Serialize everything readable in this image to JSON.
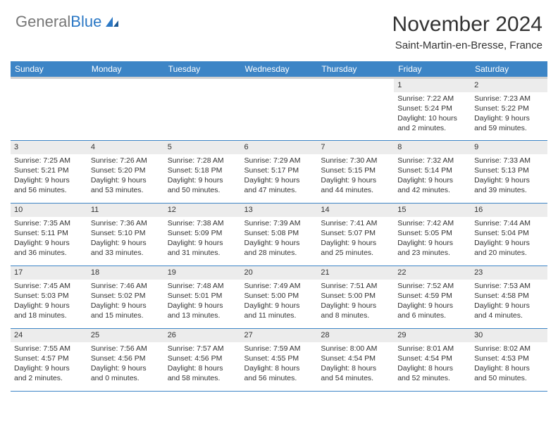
{
  "logo": {
    "text1": "General",
    "text2": "Blue"
  },
  "title": "November 2024",
  "location": "Saint-Martin-en-Bresse, France",
  "colors": {
    "header_bg": "#3d85c6",
    "header_fg": "#ffffff",
    "daynum_bg": "#ececec",
    "row_border": "#3d85c6",
    "logo_blue": "#2b78c5"
  },
  "weekdays": [
    "Sunday",
    "Monday",
    "Tuesday",
    "Wednesday",
    "Thursday",
    "Friday",
    "Saturday"
  ],
  "weeks": [
    [
      {
        "n": "",
        "sr": "",
        "ss": "",
        "dl": "",
        "empty": true
      },
      {
        "n": "",
        "sr": "",
        "ss": "",
        "dl": "",
        "empty": true
      },
      {
        "n": "",
        "sr": "",
        "ss": "",
        "dl": "",
        "empty": true
      },
      {
        "n": "",
        "sr": "",
        "ss": "",
        "dl": "",
        "empty": true
      },
      {
        "n": "",
        "sr": "",
        "ss": "",
        "dl": "",
        "empty": true
      },
      {
        "n": "1",
        "sr": "Sunrise: 7:22 AM",
        "ss": "Sunset: 5:24 PM",
        "dl": "Daylight: 10 hours and 2 minutes."
      },
      {
        "n": "2",
        "sr": "Sunrise: 7:23 AM",
        "ss": "Sunset: 5:22 PM",
        "dl": "Daylight: 9 hours and 59 minutes."
      }
    ],
    [
      {
        "n": "3",
        "sr": "Sunrise: 7:25 AM",
        "ss": "Sunset: 5:21 PM",
        "dl": "Daylight: 9 hours and 56 minutes."
      },
      {
        "n": "4",
        "sr": "Sunrise: 7:26 AM",
        "ss": "Sunset: 5:20 PM",
        "dl": "Daylight: 9 hours and 53 minutes."
      },
      {
        "n": "5",
        "sr": "Sunrise: 7:28 AM",
        "ss": "Sunset: 5:18 PM",
        "dl": "Daylight: 9 hours and 50 minutes."
      },
      {
        "n": "6",
        "sr": "Sunrise: 7:29 AM",
        "ss": "Sunset: 5:17 PM",
        "dl": "Daylight: 9 hours and 47 minutes."
      },
      {
        "n": "7",
        "sr": "Sunrise: 7:30 AM",
        "ss": "Sunset: 5:15 PM",
        "dl": "Daylight: 9 hours and 44 minutes."
      },
      {
        "n": "8",
        "sr": "Sunrise: 7:32 AM",
        "ss": "Sunset: 5:14 PM",
        "dl": "Daylight: 9 hours and 42 minutes."
      },
      {
        "n": "9",
        "sr": "Sunrise: 7:33 AM",
        "ss": "Sunset: 5:13 PM",
        "dl": "Daylight: 9 hours and 39 minutes."
      }
    ],
    [
      {
        "n": "10",
        "sr": "Sunrise: 7:35 AM",
        "ss": "Sunset: 5:11 PM",
        "dl": "Daylight: 9 hours and 36 minutes."
      },
      {
        "n": "11",
        "sr": "Sunrise: 7:36 AM",
        "ss": "Sunset: 5:10 PM",
        "dl": "Daylight: 9 hours and 33 minutes."
      },
      {
        "n": "12",
        "sr": "Sunrise: 7:38 AM",
        "ss": "Sunset: 5:09 PM",
        "dl": "Daylight: 9 hours and 31 minutes."
      },
      {
        "n": "13",
        "sr": "Sunrise: 7:39 AM",
        "ss": "Sunset: 5:08 PM",
        "dl": "Daylight: 9 hours and 28 minutes."
      },
      {
        "n": "14",
        "sr": "Sunrise: 7:41 AM",
        "ss": "Sunset: 5:07 PM",
        "dl": "Daylight: 9 hours and 25 minutes."
      },
      {
        "n": "15",
        "sr": "Sunrise: 7:42 AM",
        "ss": "Sunset: 5:05 PM",
        "dl": "Daylight: 9 hours and 23 minutes."
      },
      {
        "n": "16",
        "sr": "Sunrise: 7:44 AM",
        "ss": "Sunset: 5:04 PM",
        "dl": "Daylight: 9 hours and 20 minutes."
      }
    ],
    [
      {
        "n": "17",
        "sr": "Sunrise: 7:45 AM",
        "ss": "Sunset: 5:03 PM",
        "dl": "Daylight: 9 hours and 18 minutes."
      },
      {
        "n": "18",
        "sr": "Sunrise: 7:46 AM",
        "ss": "Sunset: 5:02 PM",
        "dl": "Daylight: 9 hours and 15 minutes."
      },
      {
        "n": "19",
        "sr": "Sunrise: 7:48 AM",
        "ss": "Sunset: 5:01 PM",
        "dl": "Daylight: 9 hours and 13 minutes."
      },
      {
        "n": "20",
        "sr": "Sunrise: 7:49 AM",
        "ss": "Sunset: 5:00 PM",
        "dl": "Daylight: 9 hours and 11 minutes."
      },
      {
        "n": "21",
        "sr": "Sunrise: 7:51 AM",
        "ss": "Sunset: 5:00 PM",
        "dl": "Daylight: 9 hours and 8 minutes."
      },
      {
        "n": "22",
        "sr": "Sunrise: 7:52 AM",
        "ss": "Sunset: 4:59 PM",
        "dl": "Daylight: 9 hours and 6 minutes."
      },
      {
        "n": "23",
        "sr": "Sunrise: 7:53 AM",
        "ss": "Sunset: 4:58 PM",
        "dl": "Daylight: 9 hours and 4 minutes."
      }
    ],
    [
      {
        "n": "24",
        "sr": "Sunrise: 7:55 AM",
        "ss": "Sunset: 4:57 PM",
        "dl": "Daylight: 9 hours and 2 minutes."
      },
      {
        "n": "25",
        "sr": "Sunrise: 7:56 AM",
        "ss": "Sunset: 4:56 PM",
        "dl": "Daylight: 9 hours and 0 minutes."
      },
      {
        "n": "26",
        "sr": "Sunrise: 7:57 AM",
        "ss": "Sunset: 4:56 PM",
        "dl": "Daylight: 8 hours and 58 minutes."
      },
      {
        "n": "27",
        "sr": "Sunrise: 7:59 AM",
        "ss": "Sunset: 4:55 PM",
        "dl": "Daylight: 8 hours and 56 minutes."
      },
      {
        "n": "28",
        "sr": "Sunrise: 8:00 AM",
        "ss": "Sunset: 4:54 PM",
        "dl": "Daylight: 8 hours and 54 minutes."
      },
      {
        "n": "29",
        "sr": "Sunrise: 8:01 AM",
        "ss": "Sunset: 4:54 PM",
        "dl": "Daylight: 8 hours and 52 minutes."
      },
      {
        "n": "30",
        "sr": "Sunrise: 8:02 AM",
        "ss": "Sunset: 4:53 PM",
        "dl": "Daylight: 8 hours and 50 minutes."
      }
    ]
  ]
}
